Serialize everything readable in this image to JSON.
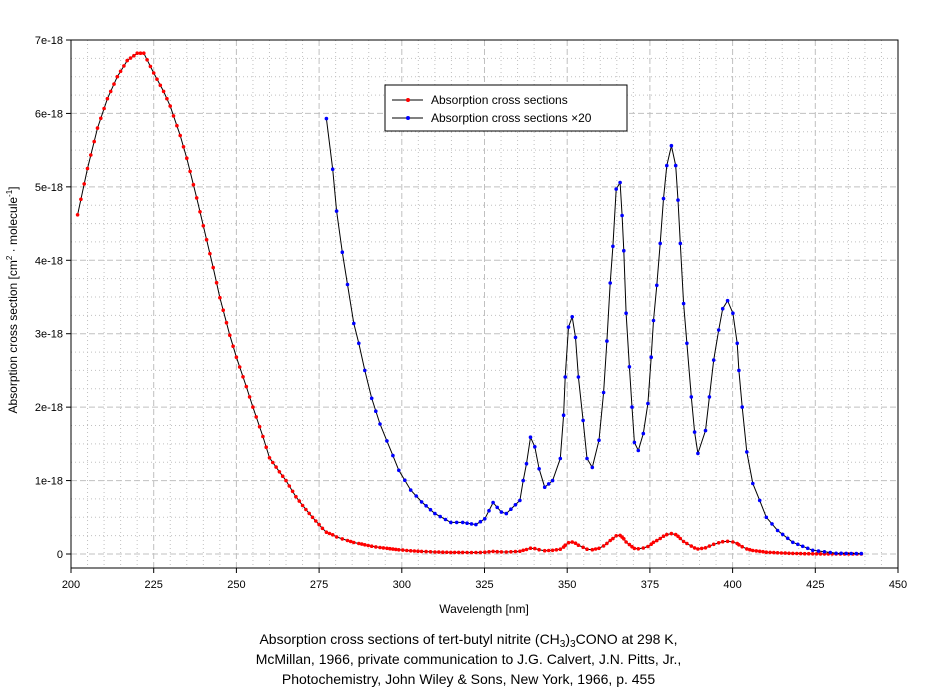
{
  "chart_data": {
    "type": "line",
    "xlabel": "Wavelength [nm]",
    "ylabel": {
      "main": "Absorption cross section [cm",
      "sup1": "2",
      "mid": " · molecule",
      "sup2": "-1",
      "end": "]"
    },
    "xlim": [
      200,
      450
    ],
    "ylim": [
      0,
      7e-18
    ],
    "x_ticks": [
      "200",
      "225",
      "250",
      "275",
      "300",
      "325",
      "350",
      "375",
      "400",
      "425",
      "450"
    ],
    "x_tick_values": [
      200,
      225,
      250,
      275,
      300,
      325,
      350,
      375,
      400,
      425,
      450
    ],
    "y_ticks": [
      "0",
      "1e-18",
      "2e-18",
      "3e-18",
      "4e-18",
      "5e-18",
      "6e-18",
      "7e-18"
    ],
    "y_tick_values": [
      0,
      1,
      2,
      3,
      4,
      5,
      6,
      7
    ],
    "y_unit": 1e-18,
    "grid": true,
    "legend_placement": "top-center",
    "colors": {
      "red": "#ff0000",
      "blue": "#0000ff",
      "line": "#000000",
      "grid": "#c0c0c0"
    },
    "series": [
      {
        "name": "Absorption cross sections",
        "marker_color": "#ff0000",
        "x": [
          202,
          205,
          208,
          211,
          214,
          217,
          220,
          222,
          225,
          228,
          230,
          233,
          235,
          238,
          240,
          243,
          245,
          248,
          250,
          253,
          255,
          258,
          260,
          263,
          265,
          268,
          270,
          273,
          276
        ],
        "y": [
          4.62,
          5.25,
          5.8,
          6.2,
          6.5,
          6.72,
          6.82,
          6.82,
          6.55,
          6.3,
          6.1,
          5.7,
          5.39,
          4.85,
          4.47,
          3.9,
          3.49,
          2.98,
          2.68,
          2.28,
          2.0,
          1.6,
          1.31,
          1.12,
          1.0,
          0.78,
          0.66,
          0.5,
          0.35
        ],
        "continues_as_series_2_divided_by": 20
      },
      {
        "name": "Absorption cross sections ×20",
        "marker_color": "#0000ff",
        "x": [
          277.2,
          279.1,
          280.3,
          282,
          283.6,
          285.5,
          287,
          288.8,
          290.9,
          293.4,
          295.5,
          297.3,
          299.1,
          302.7,
          306,
          310,
          314.8,
          318.4,
          322.4,
          325.1,
          327.6,
          330.1,
          331.6,
          335.7,
          336.7,
          337.7,
          338.9,
          340.2,
          341.5,
          343.2,
          345.6,
          347.9,
          348.9,
          349.4,
          350.4,
          351.5,
          352.5,
          353.4,
          354.8,
          356,
          357.6,
          359.6,
          361,
          362,
          363,
          363.8,
          364.8,
          366,
          366.6,
          367.1,
          367.8,
          368.8,
          369.6,
          370.3,
          371.5,
          373,
          374.4,
          375.4,
          376.1,
          377.1,
          378.1,
          379.1,
          380.1,
          381.5,
          382.8,
          383.5,
          384.2,
          385.2,
          386.2,
          387.5,
          388.5,
          389.5,
          391.8,
          393,
          394.3,
          395.8,
          397,
          398.5,
          400.1,
          401.4,
          401.9,
          402.9,
          404.3,
          406.1,
          408.2,
          410.2,
          413.6,
          418.2,
          424.2,
          431.3,
          438.9
        ],
        "y": [
          5.93,
          5.24,
          4.67,
          4.11,
          3.67,
          3.14,
          2.87,
          2.5,
          2.12,
          1.77,
          1.54,
          1.34,
          1.14,
          0.87,
          0.71,
          0.55,
          0.43,
          0.43,
          0.4,
          0.48,
          0.7,
          0.57,
          0.55,
          0.73,
          1.0,
          1.23,
          1.59,
          1.46,
          1.16,
          0.91,
          1.0,
          1.3,
          1.89,
          2.41,
          3.09,
          3.23,
          2.95,
          2.41,
          1.82,
          1.3,
          1.18,
          1.55,
          2.2,
          2.9,
          3.69,
          4.19,
          4.97,
          5.06,
          4.61,
          4.13,
          3.28,
          2.55,
          2.0,
          1.52,
          1.41,
          1.64,
          2.05,
          2.68,
          3.18,
          3.66,
          4.23,
          4.84,
          5.29,
          5.56,
          5.29,
          4.82,
          4.23,
          3.41,
          2.87,
          2.14,
          1.66,
          1.37,
          1.68,
          2.14,
          2.64,
          3.05,
          3.34,
          3.45,
          3.28,
          2.87,
          2.5,
          2.0,
          1.39,
          0.96,
          0.73,
          0.5,
          0.32,
          0.16,
          0.05,
          0.01,
          0.005
        ]
      }
    ]
  },
  "caption": {
    "line1": {
      "a": "Absorption cross sections of tert-butyl nitrite (CH",
      "sub1": "3",
      "b": ")",
      "sub2": "3",
      "c": "CONO at 298 K,"
    },
    "line2": "McMillan, 1966, private communication to J.G. Calvert, J.N. Pitts, Jr.,",
    "line3": "Photochemistry, John Wiley & Sons, New York, 1966, p. 455"
  }
}
